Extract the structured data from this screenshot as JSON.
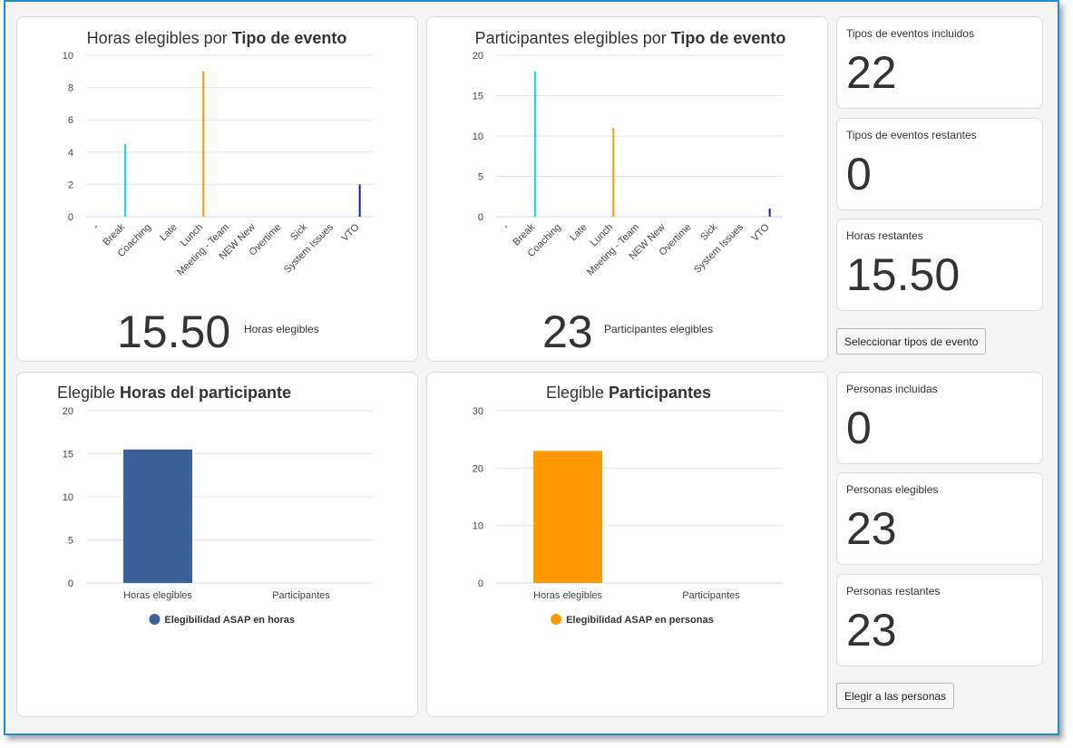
{
  "charts": {
    "hours_by_type": {
      "title_prefix": "Horas elegibles por ",
      "title_bold": "Tipo de evento",
      "big_value": "15.50",
      "big_label": "Horas elegibles"
    },
    "participants_by_type": {
      "title_prefix": "Participantes elegibles por ",
      "title_bold": "Tipo de evento",
      "big_value": "23",
      "big_label": "Participantes elegibles"
    },
    "participant_hours": {
      "title_prefix": "Elegible ",
      "title_bold": "Horas del participante",
      "legend": "Elegibilidad ASAP en horas"
    },
    "participants": {
      "title_prefix": "Elegible ",
      "title_bold": "Participantes",
      "legend": "Elegibilidad ASAP en personas"
    }
  },
  "stats": {
    "event_types_included": {
      "label": "Tipos de eventos incluidos",
      "value": "22"
    },
    "event_types_remaining": {
      "label": "Tipos de eventos restantes",
      "value": "0"
    },
    "hours_remaining": {
      "label": "Horas restantes",
      "value": "15.50"
    },
    "people_included": {
      "label": "Personas incluidas",
      "value": "0"
    },
    "people_eligible": {
      "label": "Personas elegibles",
      "value": "23"
    },
    "people_remaining": {
      "label": "Personas restantes",
      "value": "23"
    }
  },
  "buttons": {
    "select_event_types": "Seleccionar tipos de evento",
    "choose_people": "Elegir a las personas"
  },
  "chart_data": [
    {
      "type": "bar",
      "categories": [
        "-",
        "Break",
        "Coaching",
        "Late",
        "Lunch",
        "Meeting - Team",
        "NEW New",
        "Overtime",
        "Sick",
        "System Issues",
        "VTO"
      ],
      "values": [
        0,
        4.5,
        0,
        0,
        9,
        0,
        0,
        0,
        0,
        0,
        2
      ],
      "colors": [
        "#cccccc",
        "#00e5e5",
        "#cccccc",
        "#cccccc",
        "#ff9900",
        "#cccccc",
        "#cccccc",
        "#cccccc",
        "#cccccc",
        "#cccccc",
        "#1a1aa6"
      ],
      "ylim": [
        0,
        10
      ],
      "yticks": [
        0,
        2,
        4,
        6,
        8,
        10
      ],
      "grid": true
    },
    {
      "type": "bar",
      "categories": [
        "-",
        "Break",
        "Coaching",
        "Late",
        "Lunch",
        "Meeting - Team",
        "NEW New",
        "Overtime",
        "Sick",
        "System Issues",
        "VTO"
      ],
      "values": [
        0,
        18,
        0,
        0,
        11,
        0,
        0,
        0,
        0,
        0,
        1
      ],
      "colors": [
        "#cccccc",
        "#00e5e5",
        "#cccccc",
        "#cccccc",
        "#ff9900",
        "#cccccc",
        "#cccccc",
        "#cccccc",
        "#cccccc",
        "#cccccc",
        "#1a1aa6"
      ],
      "ylim": [
        0,
        20
      ],
      "yticks": [
        0,
        5,
        10,
        15,
        20
      ],
      "grid": true
    },
    {
      "type": "bar",
      "categories": [
        "Horas elegibles",
        "Participantes"
      ],
      "series": [
        {
          "name": "Elegibilidad ASAP en horas",
          "values": [
            15.5,
            0
          ],
          "color": "#3a6298"
        }
      ],
      "ylim": [
        0,
        20
      ],
      "yticks": [
        0,
        5,
        10,
        15,
        20
      ],
      "grid": true,
      "legend": "bottom"
    },
    {
      "type": "bar",
      "categories": [
        "Horas elegibles",
        "Participantes"
      ],
      "series": [
        {
          "name": "Elegibilidad ASAP en personas",
          "values": [
            23,
            0
          ],
          "color": "#ff9900"
        }
      ],
      "ylim": [
        0,
        30
      ],
      "yticks": [
        0,
        10,
        20,
        30
      ],
      "grid": true,
      "legend": "bottom"
    }
  ]
}
